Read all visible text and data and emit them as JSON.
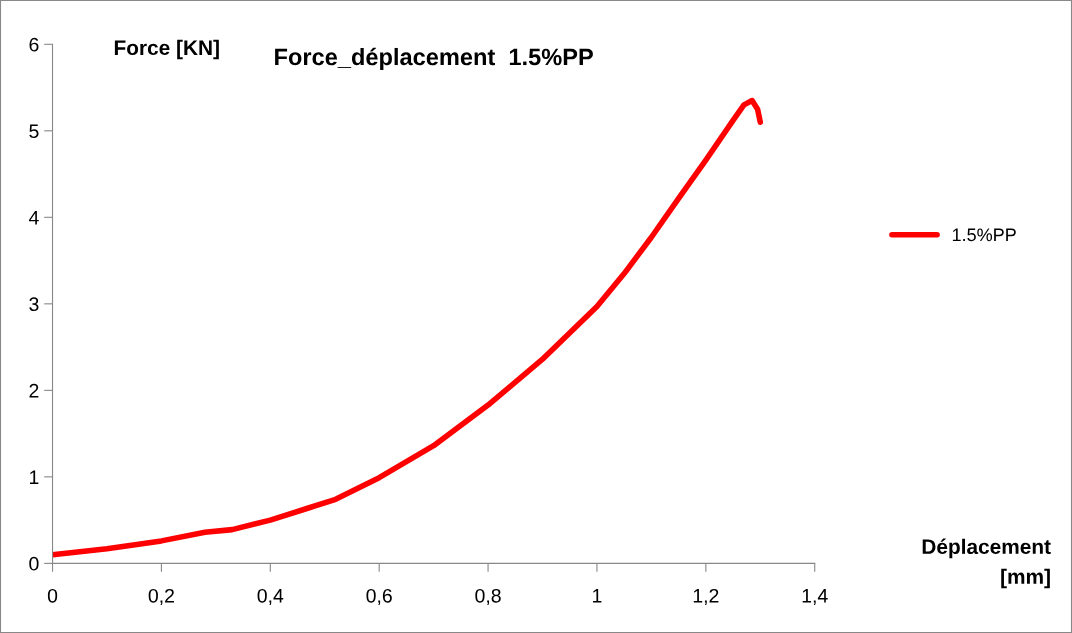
{
  "chart_data": {
    "type": "line",
    "title": "Force_déplacement  1.5%PP",
    "xlabel": "Déplacement\n[mm]",
    "ylabel": "Force [KN]",
    "xlim": [
      0,
      1.4
    ],
    "ylim": [
      0,
      6
    ],
    "xticks": [
      0,
      {
        "value": 0.2,
        "label": "0,2"
      },
      {
        "value": 0.4,
        "label": "0,4"
      },
      {
        "value": 0.6,
        "label": "0,6"
      },
      {
        "value": 0.8,
        "label": "0,8"
      },
      1,
      {
        "value": 1.2,
        "label": "1,2"
      },
      {
        "value": 1.4,
        "label": "1,4"
      }
    ],
    "yticks": [
      0,
      1,
      2,
      3,
      4,
      5,
      6
    ],
    "grid": false,
    "legend": "right",
    "marker": "none",
    "line_style": "solid",
    "series": [
      {
        "name": "1.5%PP",
        "color": "#ff0000",
        "x": [
          0,
          0.1,
          0.2,
          0.28,
          0.33,
          0.4,
          0.47,
          0.52,
          0.6,
          0.7,
          0.8,
          0.9,
          1.0,
          1.05,
          1.1,
          1.15,
          1.2,
          1.25,
          1.27,
          1.285,
          1.295,
          1.3
        ],
        "values": [
          0.1,
          0.17,
          0.26,
          0.36,
          0.39,
          0.5,
          0.64,
          0.74,
          0.99,
          1.36,
          1.83,
          2.36,
          2.97,
          3.35,
          3.77,
          4.22,
          4.66,
          5.12,
          5.3,
          5.35,
          5.25,
          5.1
        ]
      }
    ]
  }
}
